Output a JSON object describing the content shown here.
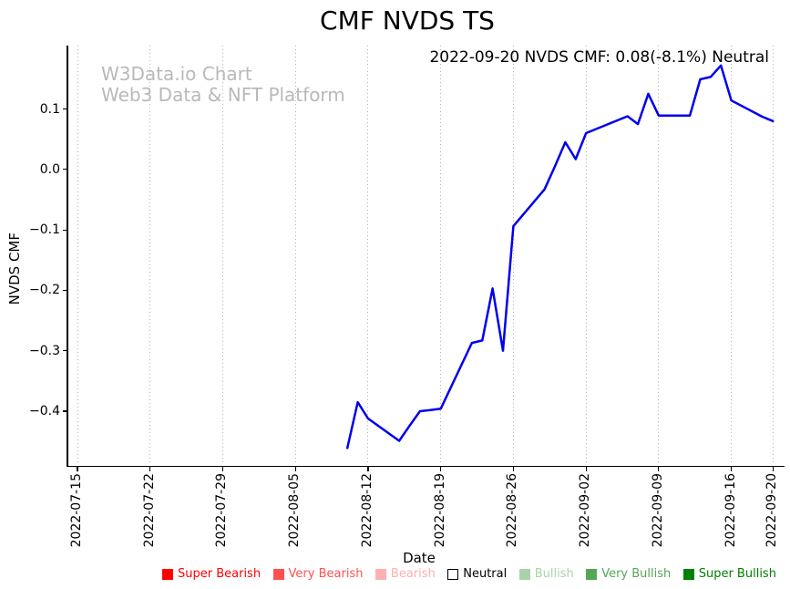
{
  "watermark": {
    "line1": "W3Data.io Chart",
    "line2": "Web3 Data & NFT Platform"
  },
  "chart_data": {
    "type": "line",
    "title": "CMF NVDS TS",
    "annotation": "2022-09-20 NVDS CMF: 0.08(-8.1%) Neutral",
    "xlabel": "Date",
    "ylabel": "NVDS CMF",
    "line_color": "#0000ee",
    "grid": "vertical-dotted",
    "legend_position": "bottom",
    "ylim": [
      -0.49,
      0.205
    ],
    "x_ticks": [
      "2022-07-15",
      "2022-07-22",
      "2022-07-29",
      "2022-08-05",
      "2022-08-12",
      "2022-08-19",
      "2022-08-26",
      "2022-09-02",
      "2022-09-09",
      "2022-09-16",
      "2022-09-20"
    ],
    "y_ticks": [
      0.1,
      0.0,
      -0.1,
      -0.2,
      -0.3,
      -0.4
    ],
    "x": [
      "2022-08-10",
      "2022-08-11",
      "2022-08-12",
      "2022-08-15",
      "2022-08-16",
      "2022-08-17",
      "2022-08-18",
      "2022-08-19",
      "2022-08-22",
      "2022-08-23",
      "2022-08-24",
      "2022-08-25",
      "2022-08-26",
      "2022-08-29",
      "2022-08-30",
      "2022-08-31",
      "2022-09-01",
      "2022-09-02",
      "2022-09-06",
      "2022-09-07",
      "2022-09-08",
      "2022-09-09",
      "2022-09-12",
      "2022-09-13",
      "2022-09-14",
      "2022-09-15",
      "2022-09-16",
      "2022-09-19",
      "2022-09-20"
    ],
    "y": [
      -0.461,
      -0.385,
      -0.412,
      -0.449,
      -0.424,
      -0.4,
      -0.398,
      -0.396,
      -0.287,
      -0.283,
      -0.197,
      -0.3,
      -0.094,
      -0.033,
      0.005,
      0.045,
      0.017,
      0.06,
      0.088,
      0.075,
      0.125,
      0.089,
      0.089,
      0.149,
      0.153,
      0.172,
      0.114,
      0.087,
      0.08
    ],
    "legend": [
      {
        "label": "Super Bearish",
        "color": "#ff0000",
        "edge": "#ff0000",
        "text_color": "#ff0000"
      },
      {
        "label": "Very Bearish",
        "color": "#ff5050",
        "edge": "#ff5050",
        "text_color": "#ff5050"
      },
      {
        "label": "Bearish",
        "color": "#ffb0b0",
        "edge": "#ffb0b0",
        "text_color": "#ffb0b0"
      },
      {
        "label": "Neutral",
        "color": "#ffffff",
        "edge": "#000000",
        "text_color": "#000000"
      },
      {
        "label": "Bullish",
        "color": "#a8d3a8",
        "edge": "#a8d3a8",
        "text_color": "#a8d3a8"
      },
      {
        "label": "Very Bullish",
        "color": "#56a656",
        "edge": "#56a656",
        "text_color": "#56a656"
      },
      {
        "label": "Super Bullish",
        "color": "#008000",
        "edge": "#008000",
        "text_color": "#008000"
      }
    ]
  }
}
